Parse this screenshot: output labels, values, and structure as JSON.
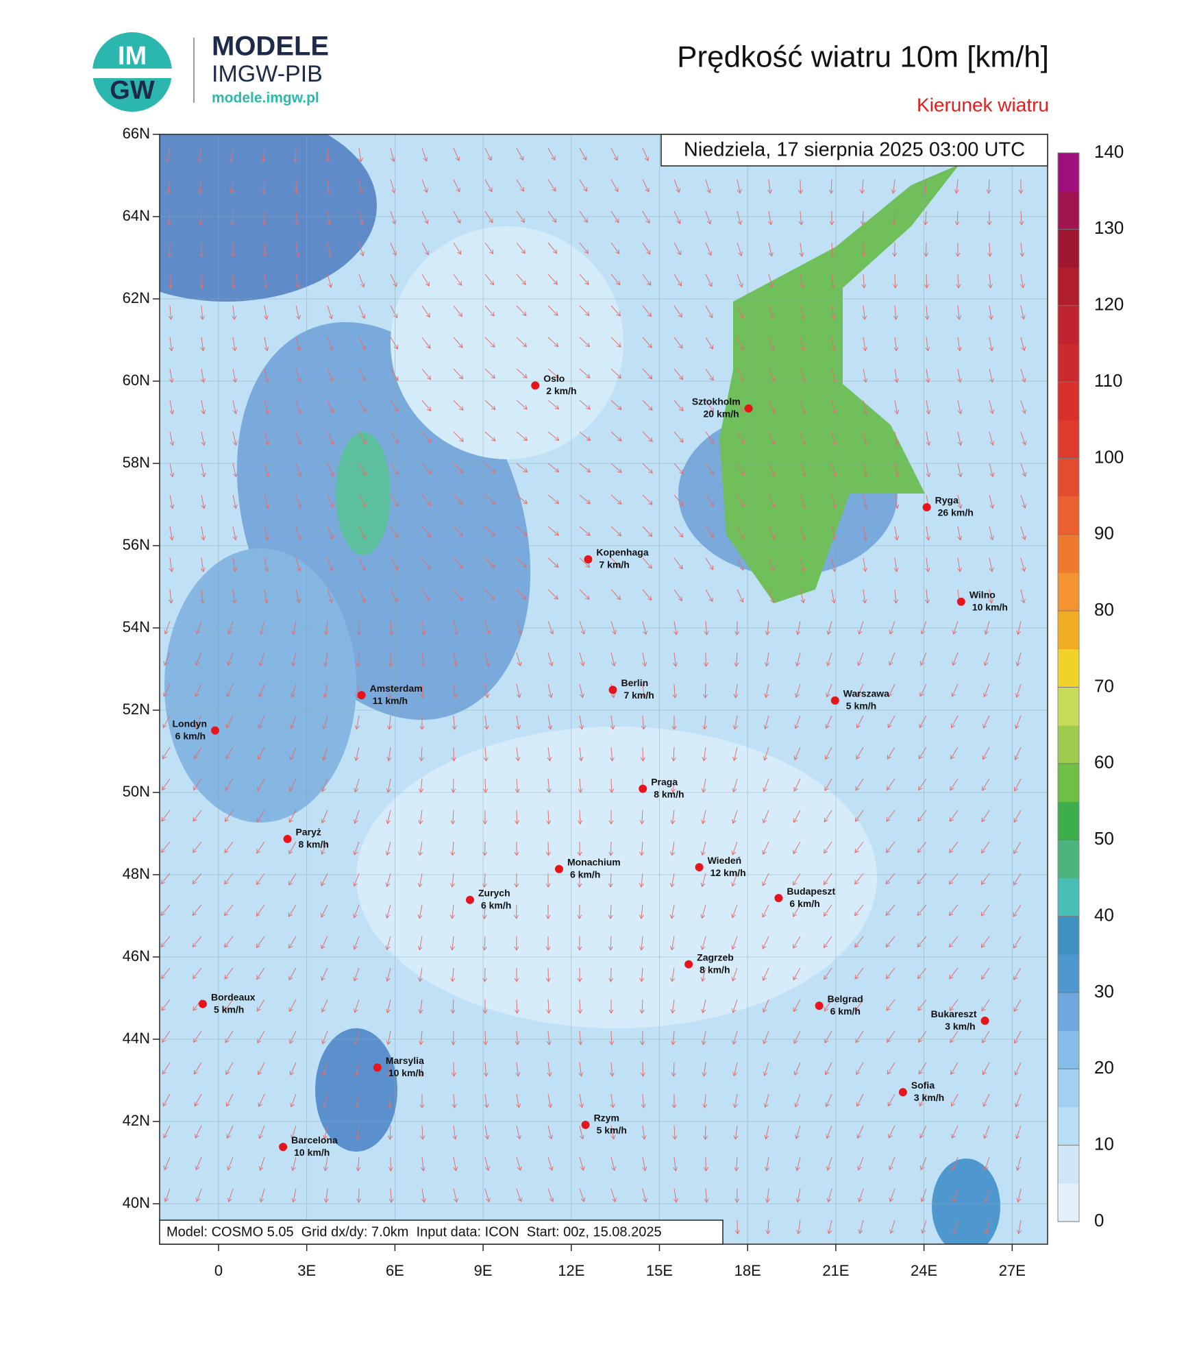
{
  "header": {
    "logo_mark_top": "IM",
    "logo_mark_bottom": "GW",
    "logo_title": "MODELE",
    "logo_subtitle": "IMGW-PIB",
    "logo_url": "modele.imgw.pl",
    "title": "Prędkość wiatru 10m [km/h]",
    "subtitle": "Kierunek wiatru"
  },
  "map": {
    "date": "Niedziela, 17 sierpnia 2025 03:00 UTC",
    "lat_labels": [
      "66N",
      "64N",
      "62N",
      "60N",
      "58N",
      "56N",
      "54N",
      "52N",
      "50N",
      "48N",
      "46N",
      "44N",
      "42N",
      "40N"
    ],
    "lon_labels": [
      "0",
      "3E",
      "6E",
      "9E",
      "12E",
      "15E",
      "18E",
      "21E",
      "24E",
      "27E"
    ],
    "cities": [
      {
        "name": "Oslo",
        "wind": "2 km/h"
      },
      {
        "name": "Sztokholm",
        "wind": "20 km/h"
      },
      {
        "name": "Ryga",
        "wind": "26 km/h"
      },
      {
        "name": "Kopenhaga",
        "wind": "7 km/h"
      },
      {
        "name": "Wilno",
        "wind": "10 km/h"
      },
      {
        "name": "Amsterdam",
        "wind": "11 km/h"
      },
      {
        "name": "Berlin",
        "wind": "7 km/h"
      },
      {
        "name": "Warszawa",
        "wind": "5 km/h"
      },
      {
        "name": "Londyn",
        "wind": "6 km/h"
      },
      {
        "name": "Praga",
        "wind": "8 km/h"
      },
      {
        "name": "Paryż",
        "wind": "8 km/h"
      },
      {
        "name": "Monachium",
        "wind": "6 km/h"
      },
      {
        "name": "Wiedeń",
        "wind": "12 km/h"
      },
      {
        "name": "Zurych",
        "wind": "6 km/h"
      },
      {
        "name": "Budapeszt",
        "wind": "6 km/h"
      },
      {
        "name": "Zagrzeb",
        "wind": "8 km/h"
      },
      {
        "name": "Bordeaux",
        "wind": "5 km/h"
      },
      {
        "name": "Belgrad",
        "wind": "6 km/h"
      },
      {
        "name": "Bukareszt",
        "wind": "3 km/h"
      },
      {
        "name": "Marsylia",
        "wind": "10 km/h"
      },
      {
        "name": "Sofia",
        "wind": "3 km/h"
      },
      {
        "name": "Rzym",
        "wind": "5 km/h"
      },
      {
        "name": "Barcelona",
        "wind": "10 km/h"
      }
    ],
    "footer": "Model: COSMO 5.05  Grid dx/dy: 7.0km  Input data: ICON  Start: 00z, 15.08.2025"
  },
  "colorbar": {
    "ticks": [
      0,
      10,
      20,
      30,
      40,
      50,
      60,
      70,
      80,
      90,
      100,
      110,
      120,
      130,
      140
    ],
    "colors": [
      "#e3f1fb",
      "#cfe8f8",
      "#b8ddf5",
      "#a2d0f0",
      "#86bce8",
      "#6ea8df",
      "#4f97cf",
      "#3f8fbf",
      "#47bfb4",
      "#4cb57e",
      "#3daf4a",
      "#6fbf45",
      "#9dcc4f",
      "#c8dc5a",
      "#f0d32a",
      "#f0ad24",
      "#f59232",
      "#ef7a2d",
      "#eb6230",
      "#e34c2e",
      "#de3a2e",
      "#d9302e",
      "#cc2a2f",
      "#bf2430",
      "#b01e2d",
      "#a0182f",
      "#a01450",
      "#a0107c"
    ]
  }
}
